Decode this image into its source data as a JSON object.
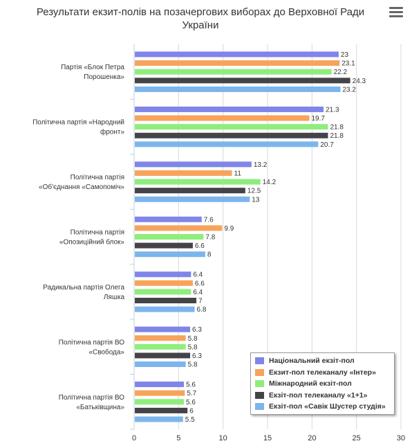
{
  "chart_data": {
    "type": "bar",
    "orientation": "horizontal",
    "title": "Результати екзит-полів на позачергових виборах до Верховної Ради України",
    "categories": [
      "Партія «Блок Петра Порошенка»",
      "Політична партія «Народний фронт»",
      "Політична партія «Об'єднання «Самопоміч»",
      "Політична партія «Опозиційний блок»",
      "Радикальна партія Олега Ляшка",
      "Політична партія ВО «Свобода»",
      "Політична партія ВО «Батьківщина»"
    ],
    "series": [
      {
        "name": "Національний екзіт-пол",
        "color": "#8085e9",
        "values": [
          23,
          21.3,
          13.2,
          7.6,
          6.4,
          6.3,
          5.6
        ]
      },
      {
        "name": "Екзит-пол телеканалу «Інтер»",
        "color": "#f7a35c",
        "values": [
          23.1,
          19.7,
          11,
          9.9,
          6.6,
          5.8,
          5.7
        ]
      },
      {
        "name": "Міжнародний екзіт-пол",
        "color": "#90ed7d",
        "values": [
          22.2,
          21.8,
          14.2,
          7.8,
          6.4,
          5.8,
          5.6
        ]
      },
      {
        "name": "Екзіт-пол телеканалу «1+1»",
        "color": "#434348",
        "values": [
          24.3,
          21.8,
          12.5,
          6.6,
          7,
          6.3,
          6
        ]
      },
      {
        "name": "Екзіт-пол «Савік Шустер студія»",
        "color": "#7cb5ec",
        "values": [
          23.2,
          20.7,
          13,
          8,
          6.8,
          5.8,
          5.5
        ]
      }
    ],
    "xlim": [
      0,
      30
    ],
    "ticks": [
      0,
      5,
      10,
      15,
      20,
      25,
      30
    ],
    "grid": true,
    "legend_position": "bottom-right"
  },
  "icons": {
    "menu": "hamburger-menu-icon"
  }
}
